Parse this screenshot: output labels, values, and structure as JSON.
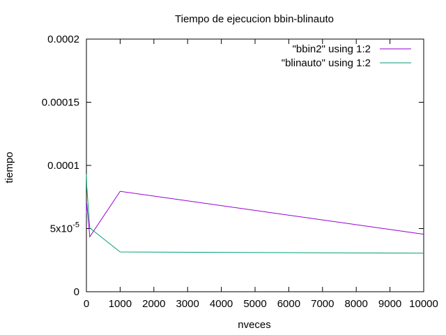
{
  "chart_data": {
    "type": "line",
    "title": "Tiempo de ejecucion bbin-blinauto",
    "xlabel": "nveces",
    "ylabel": "tiempo",
    "xlim": [
      0,
      10000
    ],
    "ylim": [
      0,
      0.0002
    ],
    "x_ticks": [
      {
        "value": 0,
        "label": "0"
      },
      {
        "value": 1000,
        "label": "1000"
      },
      {
        "value": 2000,
        "label": "2000"
      },
      {
        "value": 3000,
        "label": "3000"
      },
      {
        "value": 4000,
        "label": "4000"
      },
      {
        "value": 5000,
        "label": "5000"
      },
      {
        "value": 6000,
        "label": "6000"
      },
      {
        "value": 7000,
        "label": "7000"
      },
      {
        "value": 8000,
        "label": "8000"
      },
      {
        "value": 9000,
        "label": "9000"
      },
      {
        "value": 10000,
        "label": "10000"
      }
    ],
    "y_ticks": [
      {
        "value": 0,
        "label": "0"
      },
      {
        "value": 5e-05,
        "label": "5x10",
        "exp": "-5"
      },
      {
        "value": 0.0001,
        "label": "0.0001"
      },
      {
        "value": 0.00015,
        "label": "0.00015"
      },
      {
        "value": 0.0002,
        "label": "0.0002"
      }
    ],
    "grid": false,
    "legend_position": "top-right",
    "series": [
      {
        "name": "\"bbin2\" using 1:2",
        "color": "#9400d3",
        "x": [
          1,
          10,
          100,
          1000,
          10000
        ],
        "y": [
          6.2e-05,
          7e-05,
          4.35e-05,
          7.95e-05,
          4.55e-05
        ]
      },
      {
        "name": "\"blinauto\" using 1:2",
        "color": "#009e73",
        "x": [
          1,
          10,
          100,
          1000,
          10000
        ],
        "y": [
          9.3e-05,
          8.35e-05,
          5.05e-05,
          3.15e-05,
          3.05e-05
        ]
      }
    ]
  }
}
